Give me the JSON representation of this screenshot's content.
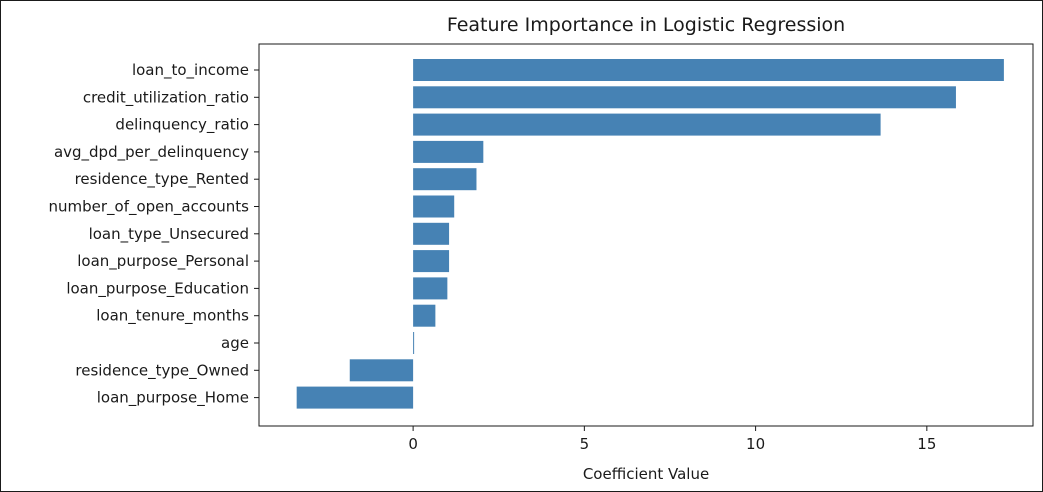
{
  "chart_data": {
    "type": "bar",
    "orientation": "horizontal",
    "title": "Feature Importance in Logistic Regression",
    "xlabel": "Coefficient Value",
    "ylabel": "",
    "xlim": [
      -4.5,
      18.1
    ],
    "x_ticks": [
      0,
      5,
      10,
      15
    ],
    "grid": false,
    "bar_color": "#4682b4",
    "categories": [
      "loan_to_income",
      "credit_utilization_ratio",
      "delinquency_ratio",
      "avg_dpd_per_delinquency",
      "residence_type_Rented",
      "number_of_open_accounts",
      "loan_type_Unsecured",
      "loan_purpose_Personal",
      "loan_purpose_Education",
      "loan_tenure_months",
      "age",
      "residence_type_Owned",
      "loan_purpose_Home"
    ],
    "values": [
      17.25,
      15.85,
      13.65,
      2.05,
      1.85,
      1.2,
      1.05,
      1.05,
      1.0,
      0.65,
      0.02,
      -1.85,
      -3.4
    ]
  }
}
